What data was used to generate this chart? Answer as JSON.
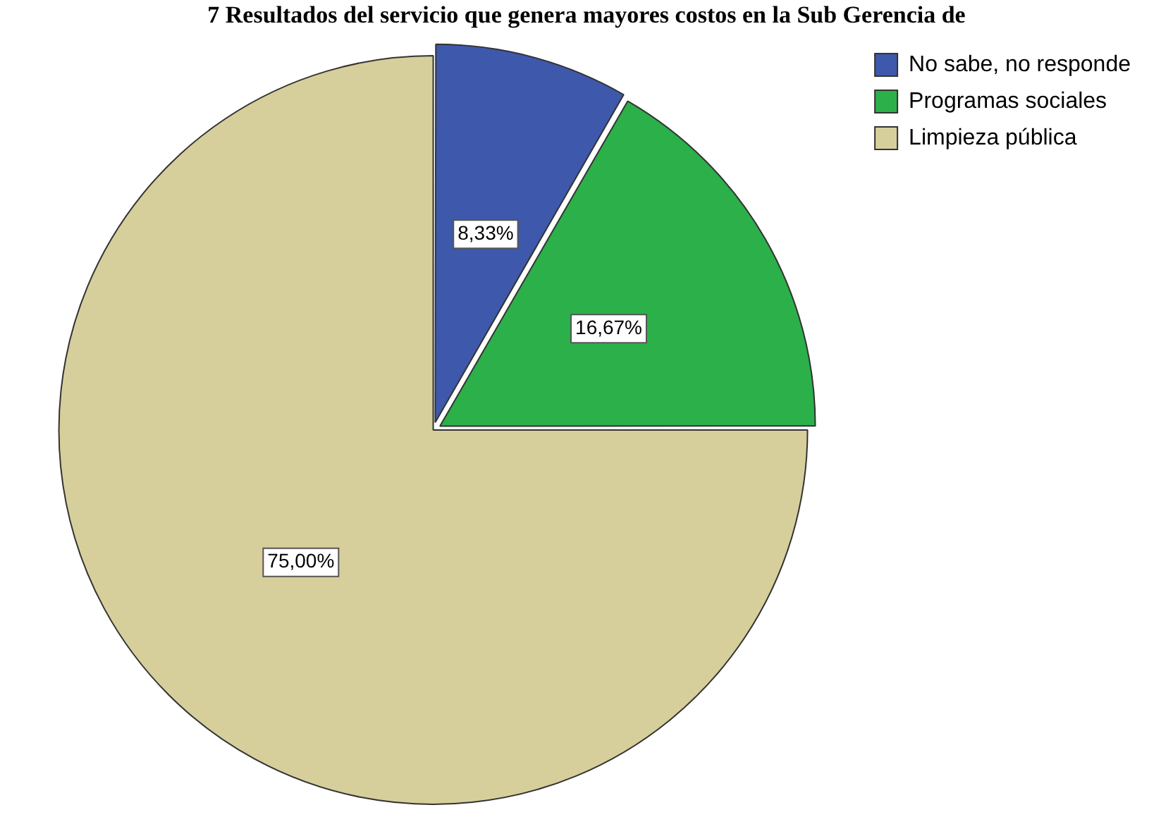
{
  "chart_data": {
    "type": "pie",
    "title": "7 Resultados del servicio que genera mayores costos en la Sub Gerencia de",
    "categories": [
      "No sabe, no responde",
      "Programas sociales",
      "Limpieza pública"
    ],
    "values": [
      8.33,
      16.67,
      75
    ],
    "colors": [
      "#3e58ac",
      "#2bb04a",
      "#d6cf9b"
    ],
    "value_labels": [
      "8,33%",
      "16,67%",
      "75,00%"
    ],
    "legend": "top right"
  }
}
